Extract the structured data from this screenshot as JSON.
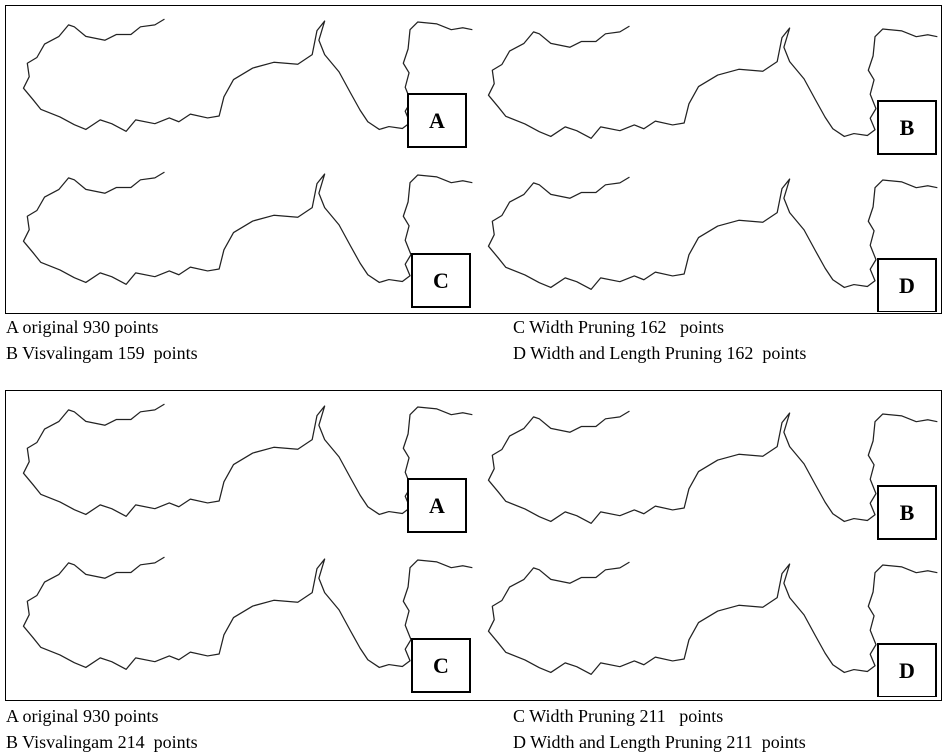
{
  "figures": [
    {
      "panels": [
        "A",
        "B",
        "C",
        "D"
      ],
      "captions_left": [
        "A original 930 points",
        "B Visvalingam 159  points"
      ],
      "captions_right": [
        "C Width Pruning 162   points",
        "D Width and Length Pruning 162  points"
      ]
    },
    {
      "panels": [
        "A",
        "B",
        "C",
        "D"
      ],
      "captions_left": [
        "A original 930 points",
        "B Visvalingam 214  points"
      ],
      "captions_right": [
        "C Width Pruning 211   points",
        "D Width and Length Pruning 211  points"
      ]
    }
  ]
}
